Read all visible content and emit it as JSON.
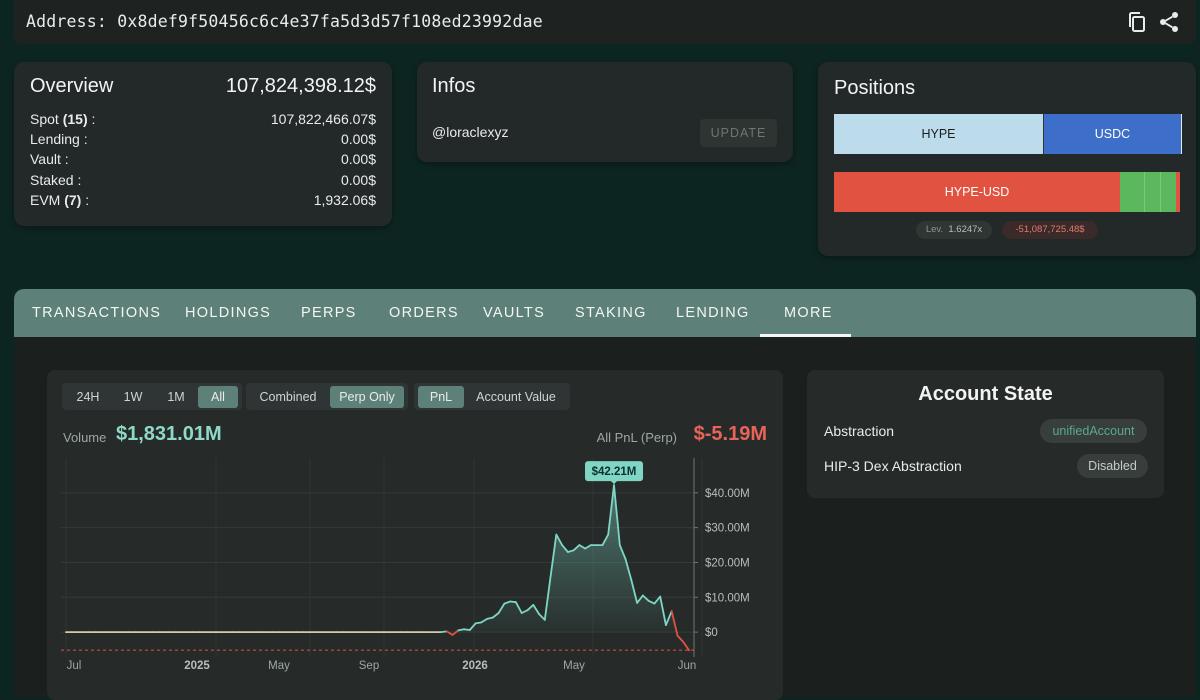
{
  "header": {
    "address_label": "Address:",
    "address": "0x8def9f50456c6c4e37fa5d3d57f108ed23992dae",
    "icons": [
      "copy-icon",
      "share-icon"
    ]
  },
  "overview": {
    "title": "Overview",
    "total": "107,824,398.12$",
    "rows": [
      {
        "label": "Spot",
        "count": "(15)",
        "suffix": " :",
        "value": "107,822,466.07$"
      },
      {
        "label": "Lending :",
        "count": "",
        "suffix": "",
        "value": "0.00$"
      },
      {
        "label": "Vault :",
        "count": "",
        "suffix": "",
        "value": "0.00$"
      },
      {
        "label": "Staked :",
        "count": "",
        "suffix": "",
        "value": "0.00$"
      },
      {
        "label": "EVM",
        "count": "(7)",
        "suffix": " :",
        "value": "1,932.06$"
      }
    ]
  },
  "infos": {
    "title": "Infos",
    "handle": "@loraclexyz",
    "update_label": "UPDATE"
  },
  "positions": {
    "title": "Positions",
    "spot_bar": [
      {
        "label": "HYPE",
        "share": 0.6,
        "color": "#bcdcec"
      },
      {
        "label": "USDC",
        "share": 0.395,
        "color": "#3d6fca"
      }
    ],
    "perp_bar_label": "HYPE-USD",
    "perp_short_color": "#e25241",
    "perp_long_color": "#5cb85c",
    "leverage_label": "Lev.",
    "leverage_value": "1.6247x",
    "pnl_value": "-51,087,725.48$"
  },
  "tabs": {
    "items": [
      "TRANSACTIONS",
      "HOLDINGS",
      "PERPS",
      "ORDERS",
      "VAULTS",
      "STAKING",
      "LENDING",
      "MORE"
    ],
    "active": "MORE"
  },
  "chart_controls": {
    "ranges": [
      "24H",
      "1W",
      "1M",
      "All"
    ],
    "active_range": "All",
    "modes": [
      "Combined",
      "Perp Only"
    ],
    "active_mode": "Perp Only",
    "metrics": [
      "PnL",
      "Account Value"
    ],
    "active_metric": "PnL"
  },
  "chart_summary": {
    "volume_label": "Volume",
    "volume_value": "$1,831.01M",
    "pnl_label": "All PnL (Perp)",
    "pnl_value": "$-5.19M",
    "peak_label": "$42.21M"
  },
  "chart_data": {
    "type": "area",
    "title": "",
    "xlabel": "",
    "ylabel": "",
    "x_tick_labels": [
      "Jul",
      "2025",
      "May",
      "Sep",
      "2026",
      "May",
      "Jun"
    ],
    "y_tick_labels": [
      "$40.00M",
      "$30.00M",
      "$20.00M",
      "$10.00M",
      "$0"
    ],
    "ylim": [
      -6,
      50
    ],
    "grid": true,
    "positive_color": "#7fd6c4",
    "negative_color": "#e25241",
    "reference_line": -5.19,
    "series": [
      {
        "values": [
          0,
          0,
          0,
          0,
          0,
          0,
          0,
          0,
          0,
          0,
          0,
          0,
          0,
          0,
          0,
          0,
          0,
          0,
          0,
          0,
          0,
          0,
          0,
          0,
          0,
          0,
          0,
          0,
          0,
          0,
          0,
          0,
          0,
          0,
          0,
          0,
          0,
          0,
          0,
          0,
          0,
          0,
          0,
          0,
          0,
          0,
          0,
          0,
          0,
          0,
          0,
          0,
          0,
          0,
          0,
          0,
          0,
          0,
          0,
          0,
          0,
          0,
          0,
          0,
          0,
          0,
          0.2,
          -0.8,
          0.5,
          0.8,
          0.6,
          2.5,
          2.8,
          3.8,
          4.2,
          5.5,
          8.2,
          8.8,
          8.6,
          5.5,
          6.3,
          7.8,
          5.2,
          3.5,
          16,
          28,
          25,
          23,
          23.5,
          25,
          24,
          25,
          25,
          25,
          28,
          42.21,
          25,
          21,
          15,
          8.4,
          10.5,
          9,
          8.2,
          10.2,
          2,
          6,
          -1,
          -2.8,
          -5.19
        ]
      }
    ]
  },
  "account_state": {
    "title": "Account State",
    "rows": [
      {
        "label": "Abstraction",
        "value": "unifiedAccount",
        "value_color": "#5aa894"
      },
      {
        "label": "HIP-3 Dex Abstraction",
        "value": "Disabled",
        "value_color": "#c5cbc9"
      }
    ]
  }
}
